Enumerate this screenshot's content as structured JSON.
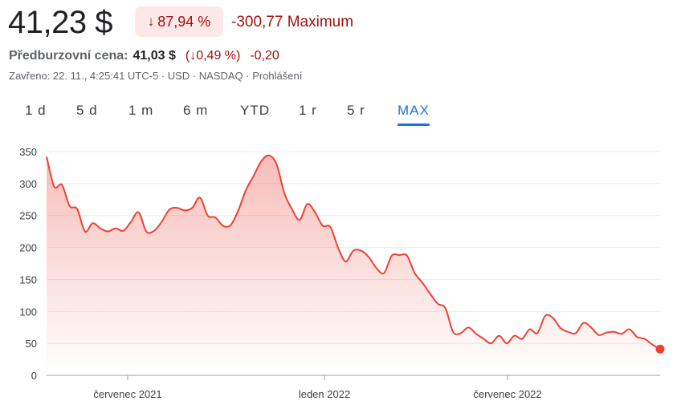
{
  "header": {
    "price": "41,23 $",
    "change_pct": "87,94 %",
    "change_abs": "-300,77 Maximum",
    "premarket_label": "Předburzovní cena:",
    "premarket_price": "41,03 $",
    "premarket_pct": "(↓0,49 %)",
    "premarket_abs": "-0,20",
    "closed_info": "Zavřeno: 22. 11., 4:25:41 UTC-5 · USD · NASDAQ · Prohlášení"
  },
  "tabs": [
    "1 d",
    "5 d",
    "1 m",
    "6 m",
    "YTD",
    "1 r",
    "5 r",
    "MAX"
  ],
  "active_tab": "MAX",
  "colors": {
    "line": "#ea4335",
    "negative": "#a50e0e",
    "accent": "#1a73e8"
  },
  "chart_data": {
    "type": "area",
    "x_ticks": [
      "červenec 2021",
      "leden 2022",
      "červenec 2022"
    ],
    "y_ticks": [
      0,
      50,
      100,
      150,
      200,
      250,
      300,
      350
    ],
    "ylim": [
      0,
      350
    ],
    "grid": true,
    "series": [
      {
        "values": [
          342,
          295,
          298,
          265,
          260,
          225,
          238,
          230,
          225,
          230,
          226,
          240,
          255,
          225,
          226,
          240,
          259,
          262,
          258,
          262,
          278,
          250,
          247,
          234,
          235,
          258,
          290,
          312,
          335,
          344,
          330,
          285,
          260,
          243,
          268,
          255,
          234,
          232,
          200,
          178,
          195,
          195,
          185,
          168,
          160,
          187,
          188,
          187,
          160,
          145,
          128,
          112,
          105,
          68,
          66,
          75,
          65,
          57,
          50,
          62,
          50,
          62,
          57,
          72,
          66,
          93,
          90,
          74,
          68,
          66,
          82,
          75,
          63,
          67,
          68,
          65,
          72,
          60,
          57,
          48,
          41
        ]
      }
    ]
  }
}
